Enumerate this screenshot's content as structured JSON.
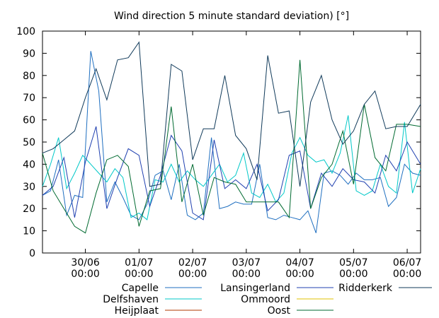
{
  "chart_data": {
    "type": "line",
    "title": "Wind direction 5 minute standard deviation) [°]",
    "xlabel": "",
    "ylabel": "",
    "x_range_days": [
      -0.8,
      6.25
    ],
    "ylim": [
      0,
      100
    ],
    "y_ticks": [
      0,
      10,
      20,
      30,
      40,
      50,
      60,
      70,
      80,
      90,
      100
    ],
    "x_ticks": [
      {
        "pos": 0,
        "line1": "30/06",
        "line2": "00:00"
      },
      {
        "pos": 1,
        "line1": "01/07",
        "line2": "00:00"
      },
      {
        "pos": 2,
        "line1": "02/07",
        "line2": "00:00"
      },
      {
        "pos": 3,
        "line1": "03/07",
        "line2": "00:00"
      },
      {
        "pos": 4,
        "line1": "04/07",
        "line2": "00:00"
      },
      {
        "pos": 5,
        "line1": "05/07",
        "line2": "00:00"
      },
      {
        "pos": 6,
        "line1": "06/07",
        "line2": "00:00"
      }
    ],
    "legend_position": "bottom",
    "series": [
      {
        "name": "Capelle",
        "color": "#1f6fc0",
        "x": [
          -0.8,
          -0.65,
          -0.5,
          -0.35,
          -0.2,
          -0.05,
          0.1,
          0.25,
          0.4,
          0.55,
          0.7,
          0.85,
          1.0,
          1.15,
          1.3,
          1.45,
          1.6,
          1.75,
          1.9,
          2.05,
          2.2,
          2.35,
          2.5,
          2.65,
          2.8,
          2.95,
          3.1,
          3.25,
          3.4,
          3.55,
          3.7,
          3.85,
          4.0,
          4.15,
          4.3,
          4.45,
          4.6,
          4.75,
          4.9,
          5.05,
          5.2,
          5.35,
          5.5,
          5.65,
          5.8,
          5.95,
          6.1,
          6.25
        ],
        "y": [
          26,
          28,
          42,
          17,
          26,
          25,
          91,
          73,
          23,
          32,
          25,
          17,
          15,
          22,
          35,
          37,
          24,
          40,
          17,
          15,
          18,
          52,
          20,
          21,
          23,
          22,
          22,
          40,
          16,
          15,
          17,
          16,
          15,
          19,
          9,
          36,
          37,
          35,
          31,
          36,
          33,
          33,
          34,
          21,
          25,
          40,
          36,
          35
        ]
      },
      {
        "name": "Delfshaven",
        "color": "#00c8c8",
        "x": [
          -0.8,
          -0.65,
          -0.5,
          -0.35,
          -0.2,
          -0.05,
          0.1,
          0.25,
          0.4,
          0.55,
          0.7,
          0.85,
          1.0,
          1.15,
          1.3,
          1.45,
          1.6,
          1.75,
          1.9,
          2.05,
          2.2,
          2.35,
          2.5,
          2.65,
          2.8,
          2.95,
          3.1,
          3.25,
          3.4,
          3.55,
          3.7,
          3.85,
          4.0,
          4.15,
          4.3,
          4.45,
          4.6,
          4.75,
          4.9,
          5.05,
          5.2,
          5.35,
          5.5,
          5.65,
          5.8,
          5.95,
          6.1,
          6.25
        ],
        "y": [
          30,
          40,
          52,
          29,
          36,
          44,
          40,
          36,
          32,
          38,
          34,
          16,
          18,
          15,
          33,
          32,
          40,
          32,
          37,
          33,
          30,
          35,
          40,
          32,
          35,
          45,
          27,
          25,
          31,
          23,
          27,
          45,
          52,
          44,
          41,
          42,
          36,
          45,
          62,
          28,
          26,
          28,
          40,
          30,
          27,
          59,
          27,
          38
        ]
      },
      {
        "name": "Heijplaat",
        "color": "#b03a00",
        "x": [],
        "y": []
      },
      {
        "name": "Lansingerland",
        "color": "#2040b0",
        "x": [
          -0.8,
          -0.6,
          -0.4,
          -0.2,
          0.0,
          0.2,
          0.4,
          0.6,
          0.8,
          1.0,
          1.2,
          1.4,
          1.6,
          1.8,
          2.0,
          2.2,
          2.4,
          2.6,
          2.8,
          3.0,
          3.2,
          3.4,
          3.6,
          3.8,
          4.0,
          4.2,
          4.4,
          4.6,
          4.8,
          5.0,
          5.2,
          5.4,
          5.6,
          5.8,
          6.0,
          6.25
        ],
        "y": [
          26,
          30,
          43,
          16,
          41,
          57,
          20,
          34,
          47,
          44,
          21,
          35,
          53,
          46,
          18,
          15,
          51,
          29,
          33,
          29,
          40,
          19,
          24,
          44,
          46,
          20,
          36,
          30,
          38,
          33,
          32,
          27,
          44,
          37,
          50,
          40
        ]
      },
      {
        "name": "Ommoord",
        "color": "#e0c000",
        "x": [],
        "y": []
      },
      {
        "name": "Oost",
        "color": "#006a30",
        "x": [
          -0.8,
          -0.6,
          -0.4,
          -0.2,
          0.0,
          0.2,
          0.4,
          0.6,
          0.8,
          1.0,
          1.2,
          1.4,
          1.6,
          1.8,
          2.0,
          2.2,
          2.4,
          2.6,
          2.8,
          3.0,
          3.2,
          3.4,
          3.6,
          3.8,
          4.0,
          4.2,
          4.4,
          4.6,
          4.8,
          5.0,
          5.2,
          5.4,
          5.6,
          5.8,
          6.0,
          6.25
        ],
        "y": [
          45,
          28,
          20,
          12,
          9,
          27,
          42,
          44,
          39,
          12,
          28,
          29,
          66,
          23,
          40,
          17,
          34,
          32,
          31,
          23,
          23,
          23,
          23,
          16,
          87,
          20,
          34,
          40,
          55,
          31,
          67,
          43,
          37,
          58,
          58,
          57
        ]
      },
      {
        "name": "Ridderkerk",
        "color": "#103a5a",
        "x": [
          -0.8,
          -0.6,
          -0.4,
          -0.2,
          0.0,
          0.2,
          0.4,
          0.6,
          0.8,
          1.0,
          1.2,
          1.4,
          1.6,
          1.8,
          2.0,
          2.2,
          2.4,
          2.6,
          2.8,
          3.0,
          3.2,
          3.4,
          3.6,
          3.8,
          4.0,
          4.2,
          4.4,
          4.6,
          4.8,
          5.0,
          5.2,
          5.4,
          5.6,
          5.8,
          6.0,
          6.25
        ],
        "y": [
          45,
          47,
          51,
          55,
          70,
          83,
          69,
          87,
          88,
          95,
          30,
          31,
          85,
          82,
          42,
          56,
          56,
          80,
          53,
          47,
          33,
          89,
          63,
          64,
          30,
          68,
          80,
          60,
          49,
          55,
          67,
          73,
          56,
          57,
          57,
          67
        ]
      }
    ]
  }
}
